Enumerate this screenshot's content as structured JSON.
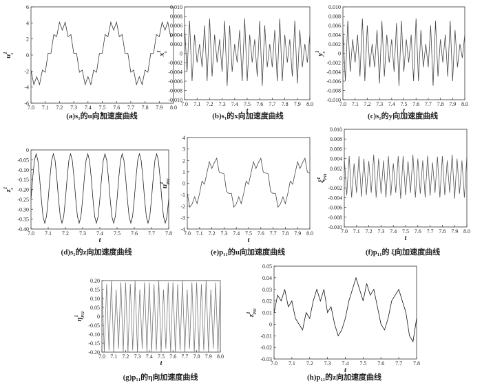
{
  "chart_data": [
    {
      "type": "line",
      "caption": "(a)s₁的u向加速度曲线",
      "xlabel": "t",
      "ylabel": "u",
      "ylabel_sub": "s",
      "ylabel_sup": "1",
      "color": "#333333",
      "xlim": [
        7,
        8
      ],
      "ylim": [
        -6,
        6
      ],
      "xticks": [
        {
          "value": 7,
          "label": "7.0"
        },
        7.1,
        7.2,
        7.3,
        7.4,
        7.5,
        7.6,
        7.7,
        7.8,
        7.9,
        {
          "value": 8,
          "label": "8.0"
        }
      ],
      "yticks": [
        -6,
        -4,
        -2,
        0,
        2,
        4,
        6
      ],
      "x": [
        7,
        7.02,
        7.04,
        7.06,
        7.08,
        7.1,
        7.12,
        7.14,
        7.16,
        7.18,
        7.2,
        7.22,
        7.24,
        7.26,
        7.28,
        7.3,
        7.32,
        7.34,
        7.36,
        7.38,
        7.4,
        7.42,
        7.44,
        7.46,
        7.48,
        7.5,
        7.52,
        7.54,
        7.56,
        7.58,
        7.6,
        7.62,
        7.64,
        7.66,
        7.68,
        7.7,
        7.72,
        7.74,
        7.76,
        7.78,
        7.8,
        7.82,
        7.84,
        7.86,
        7.88,
        7.9,
        7.92,
        7.94,
        7.96,
        7.98,
        8
      ],
      "values": [
        -1.88,
        -3.69,
        -2.7,
        -3.69,
        -1.88,
        -2.15,
        0.19,
        0.21,
        2.55,
        2.28,
        4.09,
        3.1,
        4.09,
        2.28,
        2.55,
        0.21,
        0.19,
        -2.15,
        -1.88,
        -3.69,
        -2.7,
        -3.69,
        -1.88,
        -2.15,
        0.19,
        0.21,
        2.55,
        2.28,
        4.09,
        3.1,
        4.09,
        2.28,
        2.55,
        0.21,
        0.19,
        -2.15,
        -1.88,
        -3.69,
        -2.7,
        -3.69,
        -1.88,
        -2.15,
        0.19,
        0.21,
        2.55,
        2.28,
        4.09,
        3.1,
        4.09,
        2.28,
        2.55
      ]
    },
    {
      "type": "line",
      "caption": "(b)s₁的x向加速度曲线",
      "xlabel": "t",
      "ylabel": "x",
      "ylabel_sub": "s",
      "ylabel_sup": "1",
      "color": "#444444",
      "xlim": [
        7,
        8
      ],
      "ylim": [
        -0.01,
        0.01
      ],
      "xticks": [
        {
          "value": 7,
          "label": "7.0"
        },
        7.1,
        7.2,
        7.3,
        7.4,
        7.5,
        7.6,
        7.7,
        7.8,
        7.9,
        {
          "value": 8,
          "label": "8.0"
        }
      ],
      "yticks": [
        {
          "value": -0.01,
          "label": "-0.010"
        },
        -0.008,
        -0.006,
        -0.004,
        -0.002,
        0,
        0.002,
        0.004,
        0.006,
        0.008,
        {
          "value": 0.01,
          "label": "0.010"
        }
      ],
      "x": [
        7,
        7.02,
        7.04,
        7.06,
        7.08,
        7.1,
        7.12,
        7.14,
        7.16,
        7.18,
        7.2,
        7.22,
        7.24,
        7.26,
        7.28,
        7.3,
        7.32,
        7.34,
        7.36,
        7.38,
        7.4,
        7.42,
        7.44,
        7.46,
        7.48,
        7.5,
        7.52,
        7.54,
        7.56,
        7.58,
        7.6,
        7.62,
        7.64,
        7.66,
        7.68,
        7.7,
        7.72,
        7.74,
        7.76,
        7.78,
        7.8,
        7.82,
        7.84,
        7.86,
        7.88,
        7.9,
        7.92,
        7.94,
        7.96,
        7.98,
        8
      ],
      "values": [
        0.006,
        -0.004,
        0.007,
        -0.006,
        0.004,
        -0.002,
        0.002,
        -0.003,
        0.006,
        -0.006,
        0.0075,
        -0.005,
        0.004,
        -0.002,
        0.003,
        -0.004,
        0.007,
        -0.007,
        0.006,
        -0.004,
        0.002,
        -0.002,
        0.005,
        -0.006,
        0.0075,
        -0.006,
        0.004,
        -0.002,
        0.003,
        -0.005,
        0.007,
        -0.007,
        0.006,
        -0.003,
        0.002,
        -0.003,
        0.005,
        -0.006,
        0.0075,
        -0.006,
        0.004,
        -0.002,
        0.003,
        -0.005,
        0.007,
        -0.0065,
        0.005,
        -0.003,
        0.002,
        -0.002,
        0.004
      ]
    },
    {
      "type": "line",
      "caption": "(c)s₁的y向加速度曲线",
      "xlabel": "t",
      "ylabel": "y",
      "ylabel_sub": "s",
      "ylabel_sup": "1",
      "color": "#444444",
      "xlim": [
        7,
        8
      ],
      "ylim": [
        -0.01,
        0.01
      ],
      "xticks": [
        {
          "value": 7,
          "label": "7.0"
        },
        7.1,
        7.2,
        7.3,
        7.4,
        7.5,
        7.6,
        7.7,
        7.8,
        7.9,
        {
          "value": 8,
          "label": "8.0"
        }
      ],
      "yticks": [
        {
          "value": -0.01,
          "label": "-0.010"
        },
        -0.008,
        -0.006,
        -0.004,
        -0.002,
        0,
        0.002,
        0.004,
        0.006,
        0.008,
        {
          "value": 0.01,
          "label": "0.010"
        }
      ],
      "x": [
        7,
        7.02,
        7.04,
        7.06,
        7.08,
        7.1,
        7.12,
        7.14,
        7.16,
        7.18,
        7.2,
        7.22,
        7.24,
        7.26,
        7.28,
        7.3,
        7.32,
        7.34,
        7.36,
        7.38,
        7.4,
        7.42,
        7.44,
        7.46,
        7.48,
        7.5,
        7.52,
        7.54,
        7.56,
        7.58,
        7.6,
        7.62,
        7.64,
        7.66,
        7.68,
        7.7,
        7.72,
        7.74,
        7.76,
        7.78,
        7.8,
        7.82,
        7.84,
        7.86,
        7.88,
        7.9,
        7.92,
        7.94,
        7.96,
        7.98,
        8
      ],
      "values": [
        0.005,
        -0.006,
        0.007,
        -0.004,
        0.003,
        -0.002,
        0.004,
        -0.005,
        0.0075,
        -0.006,
        0.006,
        -0.003,
        0.002,
        -0.003,
        0.005,
        -0.0065,
        0.007,
        -0.005,
        0.004,
        -0.002,
        0.003,
        -0.004,
        0.0065,
        -0.007,
        0.007,
        -0.004,
        0.003,
        -0.002,
        0.004,
        -0.006,
        0.0075,
        -0.006,
        0.005,
        -0.003,
        0.002,
        -0.003,
        0.006,
        -0.007,
        0.007,
        -0.005,
        0.003,
        -0.002,
        0.004,
        -0.005,
        0.007,
        -0.006,
        0.005,
        -0.003,
        0.002,
        -0.001,
        0.004
      ]
    },
    {
      "type": "line",
      "caption": "(d)s₁的z向加速度曲线",
      "xlabel": "t",
      "ylabel": "z",
      "ylabel_sub": "s",
      "ylabel_sup": "1",
      "color": "#222222",
      "xlim": [
        7,
        7.8
      ],
      "ylim": [
        -0.4,
        0
      ],
      "xticks": [
        {
          "value": 7,
          "label": "7.0"
        },
        7.1,
        7.2,
        7.3,
        7.4,
        7.5,
        7.6,
        7.7,
        7.8
      ],
      "yticks": [
        {
          "value": -0.4,
          "label": "-0.40"
        },
        -0.35,
        {
          "value": -0.3,
          "label": "-0.30"
        },
        -0.25,
        {
          "value": -0.2,
          "label": "-0.20"
        },
        -0.15,
        {
          "value": -0.1,
          "label": "-0.10"
        },
        -0.05,
        0
      ],
      "x": [
        7,
        7.01,
        7.02,
        7.03,
        7.04,
        7.05,
        7.06,
        7.07,
        7.08,
        7.09,
        7.1,
        7.11,
        7.12,
        7.13,
        7.14,
        7.15,
        7.16,
        7.17,
        7.18,
        7.19,
        7.2,
        7.21,
        7.22,
        7.23,
        7.24,
        7.25,
        7.26,
        7.27,
        7.28,
        7.29,
        7.3,
        7.31,
        7.32,
        7.33,
        7.34,
        7.35,
        7.36,
        7.37,
        7.38,
        7.39,
        7.4,
        7.41,
        7.42,
        7.43,
        7.44,
        7.45,
        7.46,
        7.47,
        7.48,
        7.49,
        7.5,
        7.51,
        7.52,
        7.53,
        7.54,
        7.55,
        7.56,
        7.57,
        7.58,
        7.59,
        7.6,
        7.61,
        7.62,
        7.63,
        7.64,
        7.65,
        7.66,
        7.67,
        7.68,
        7.69,
        7.7,
        7.71,
        7.72,
        7.73,
        7.74,
        7.75,
        7.76,
        7.77,
        7.78,
        7.79,
        7.8
      ],
      "values": [
        -0.249,
        -0.141,
        -0.053,
        -0.02,
        -0.053,
        -0.141,
        -0.249,
        -0.337,
        -0.37,
        -0.337,
        -0.249,
        -0.141,
        -0.053,
        -0.02,
        -0.053,
        -0.141,
        -0.249,
        -0.337,
        -0.37,
        -0.337,
        -0.249,
        -0.141,
        -0.053,
        -0.02,
        -0.053,
        -0.141,
        -0.249,
        -0.337,
        -0.37,
        -0.337,
        -0.249,
        -0.141,
        -0.053,
        -0.02,
        -0.053,
        -0.141,
        -0.249,
        -0.337,
        -0.37,
        -0.337,
        -0.249,
        -0.141,
        -0.053,
        -0.02,
        -0.053,
        -0.141,
        -0.249,
        -0.337,
        -0.37,
        -0.337,
        -0.249,
        -0.141,
        -0.053,
        -0.02,
        -0.053,
        -0.141,
        -0.249,
        -0.337,
        -0.37,
        -0.337,
        -0.249,
        -0.141,
        -0.053,
        -0.02,
        -0.053,
        -0.141,
        -0.249,
        -0.337,
        -0.37,
        -0.337,
        -0.249,
        -0.141,
        -0.053,
        -0.02,
        -0.053,
        -0.141,
        -0.249,
        -0.337,
        -0.37,
        -0.337,
        -0.249
      ]
    },
    {
      "type": "line",
      "caption": "(e)p₁₁的u向加速度曲线",
      "xlabel": "t",
      "ylabel": "u",
      "ylabel_sub": "P11",
      "ylabel_sup": "1",
      "color": "#444444",
      "xlim": [
        7,
        8
      ],
      "ylim": [
        -4,
        4
      ],
      "xticks": [
        {
          "value": 7,
          "label": "7.0"
        },
        7.1,
        7.2,
        7.3,
        7.4,
        7.5,
        7.6,
        7.7,
        7.8,
        7.9,
        {
          "value": 8,
          "label": "8.0"
        }
      ],
      "yticks": [
        -4,
        -3,
        -2,
        -1,
        0,
        1,
        2,
        3,
        4
      ],
      "x": [
        7,
        7.02,
        7.04,
        7.06,
        7.08,
        7.1,
        7.12,
        7.14,
        7.16,
        7.18,
        7.2,
        7.22,
        7.24,
        7.26,
        7.28,
        7.3,
        7.32,
        7.34,
        7.36,
        7.38,
        7.4,
        7.42,
        7.44,
        7.46,
        7.48,
        7.5,
        7.52,
        7.54,
        7.56,
        7.58,
        7.6,
        7.62,
        7.64,
        7.66,
        7.68,
        7.7,
        7.72,
        7.74,
        7.76,
        7.78,
        7.8,
        7.82,
        7.84,
        7.86,
        7.88,
        7.9,
        7.92,
        7.94,
        7.96,
        7.98,
        8
      ],
      "values": [
        -0.88,
        -2.09,
        -1.8,
        -1.19,
        -1.78,
        -0.9,
        0.19,
        -0.09,
        0.9,
        1.88,
        1.29,
        1.8,
        2.19,
        0.98,
        0.9,
        0.81,
        -0.71,
        -0.9,
        -0.88,
        -2.09,
        -1.8,
        -1.19,
        -1.78,
        -0.9,
        0.19,
        -0.09,
        0.9,
        1.88,
        1.29,
        1.8,
        2.19,
        0.98,
        0.9,
        0.81,
        -0.71,
        -0.9,
        -0.88,
        -2.09,
        -1.8,
        -1.19,
        -1.78,
        -0.9,
        0.19,
        -0.09,
        0.9,
        1.88,
        1.29,
        1.8,
        2.19,
        0.98,
        0.9
      ]
    },
    {
      "type": "line",
      "caption": "(f)p₁₁的 ξ向加速度曲线",
      "xlabel": "t",
      "ylabel": "ξ",
      "ylabel_sub": "P11",
      "ylabel_sup": "1",
      "color": "#555555",
      "xlim": [
        7,
        8
      ],
      "ylim": [
        -0.01,
        0.01
      ],
      "xticks": [
        {
          "value": 7,
          "label": "7.0"
        },
        7.1,
        7.2,
        7.3,
        7.4,
        7.5,
        7.6,
        7.7,
        7.8,
        7.9,
        {
          "value": 8,
          "label": "8.0"
        }
      ],
      "yticks": [
        {
          "value": -0.01,
          "label": "-0.010"
        },
        -0.008,
        -0.006,
        -0.004,
        -0.002,
        0,
        0.002,
        0.004,
        0.006,
        0.008,
        {
          "value": 0.01,
          "label": "0.010"
        }
      ],
      "x": [
        7,
        7.02,
        7.04,
        7.06,
        7.08,
        7.1,
        7.12,
        7.14,
        7.16,
        7.18,
        7.2,
        7.22,
        7.24,
        7.26,
        7.28,
        7.3,
        7.32,
        7.34,
        7.36,
        7.38,
        7.4,
        7.42,
        7.44,
        7.46,
        7.48,
        7.5,
        7.52,
        7.54,
        7.56,
        7.58,
        7.6,
        7.62,
        7.64,
        7.66,
        7.68,
        7.7,
        7.72,
        7.74,
        7.76,
        7.78,
        7.8,
        7.82,
        7.84,
        7.86,
        7.88,
        7.9,
        7.92,
        7.94,
        7.96,
        7.98,
        8
      ],
      "values": [
        0.004,
        -0.0035,
        0.0045,
        -0.004,
        0.003,
        -0.003,
        0.0045,
        -0.0038,
        0.004,
        -0.0035,
        0.0035,
        -0.003,
        0.0048,
        -0.004,
        0.004,
        -0.0032,
        0.0036,
        -0.004,
        0.0045,
        -0.0036,
        0.003,
        -0.003,
        0.0045,
        -0.0042,
        0.0045,
        -0.0035,
        0.0035,
        -0.003,
        0.0048,
        -0.004,
        0.004,
        -0.0032,
        0.0036,
        -0.004,
        0.0046,
        -0.0036,
        0.0032,
        -0.003,
        0.0044,
        -0.004,
        0.0045,
        -0.0035,
        0.0036,
        -0.003,
        0.0048,
        -0.0042,
        0.004,
        -0.0032,
        0.0036,
        -0.004,
        0.0045
      ]
    },
    {
      "type": "line",
      "caption": "(g)p₁₁的η向加速度曲线",
      "xlabel": "t",
      "ylabel": "η",
      "ylabel_sub": "P11",
      "ylabel_sup": "1",
      "color": "#777777",
      "xlim": [
        7,
        8
      ],
      "ylim": [
        -0.2,
        0.2
      ],
      "xticks": [
        {
          "value": 7,
          "label": "7.0"
        },
        7.1,
        7.2,
        7.3,
        7.4,
        7.5,
        7.6,
        7.7,
        7.8,
        7.9,
        {
          "value": 8,
          "label": "8.0"
        }
      ],
      "yticks": [
        {
          "value": -0.2,
          "label": "-0.20"
        },
        -0.15,
        {
          "value": -0.1,
          "label": "-0.10"
        },
        -0.05,
        0,
        0.05,
        {
          "value": 0.1,
          "label": "0.10"
        },
        0.15,
        {
          "value": 0.2,
          "label": "0.20"
        }
      ],
      "x": [
        7,
        7.02,
        7.04,
        7.06,
        7.08,
        7.1,
        7.12,
        7.14,
        7.16,
        7.18,
        7.2,
        7.22,
        7.24,
        7.26,
        7.28,
        7.3,
        7.32,
        7.34,
        7.36,
        7.38,
        7.4,
        7.42,
        7.44,
        7.46,
        7.48,
        7.5,
        7.52,
        7.54,
        7.56,
        7.58,
        7.6,
        7.62,
        7.64,
        7.66,
        7.68,
        7.7,
        7.72,
        7.74,
        7.76,
        7.78,
        7.8,
        7.82,
        7.84,
        7.86,
        7.88,
        7.9,
        7.92,
        7.94,
        7.96,
        7.98,
        8
      ],
      "values": [
        0.19,
        -0.2,
        0.18,
        -0.19,
        0.2,
        -0.2,
        0.15,
        -0.18,
        0.19,
        -0.2,
        0.19,
        -0.2,
        0.18,
        -0.19,
        0.2,
        -0.2,
        0.15,
        -0.18,
        0.19,
        -0.2,
        0.19,
        -0.2,
        0.18,
        -0.19,
        0.2,
        -0.2,
        0.15,
        -0.18,
        0.19,
        -0.2,
        0.19,
        -0.2,
        0.18,
        -0.19,
        0.2,
        -0.2,
        0.15,
        -0.18,
        0.19,
        -0.2,
        0.19,
        -0.2,
        0.18,
        -0.19,
        0.2,
        -0.2,
        0.15,
        -0.18,
        0.19,
        -0.2,
        0.19
      ]
    },
    {
      "type": "line",
      "caption": "(h)p₁₁的z向加速度曲线",
      "xlabel": "t",
      "ylabel": "z",
      "ylabel_sub": "P11",
      "ylabel_sup": "1",
      "color": "#111111",
      "xlim": [
        7,
        7.8
      ],
      "ylim": [
        -0.03,
        0.05
      ],
      "xticks": [
        {
          "value": 7,
          "label": "7.0"
        },
        7.1,
        7.2,
        7.3,
        7.4,
        7.5,
        7.6,
        7.7,
        7.8
      ],
      "yticks": [
        -0.03,
        -0.02,
        -0.01,
        0,
        0.01,
        0.02,
        0.03,
        0.04,
        0.05
      ],
      "x": [
        7,
        7.02,
        7.04,
        7.06,
        7.08,
        7.1,
        7.12,
        7.14,
        7.16,
        7.18,
        7.2,
        7.22,
        7.24,
        7.26,
        7.28,
        7.3,
        7.32,
        7.34,
        7.36,
        7.38,
        7.4,
        7.42,
        7.44,
        7.46,
        7.48,
        7.5,
        7.52,
        7.54,
        7.56,
        7.58,
        7.6,
        7.62,
        7.64,
        7.66,
        7.68,
        7.7,
        7.72,
        7.74,
        7.76,
        7.78,
        7.8
      ],
      "values": [
        0.01,
        0.025,
        0.02,
        0.03,
        0.015,
        0.02,
        0.005,
        0,
        -0.005,
        0.01,
        0.005,
        0.02,
        0.03,
        0.02,
        0.03,
        0.01,
        0.015,
        0,
        -0.01,
        -0.005,
        0.005,
        0.02,
        0.03,
        0.04,
        0.03,
        0.02,
        0.035,
        0.025,
        0.03,
        0.015,
        0,
        -0.005,
        0.005,
        0.02,
        0.025,
        0.03,
        0.02,
        0.01,
        -0.01,
        -0.015,
        0.005
      ]
    }
  ]
}
